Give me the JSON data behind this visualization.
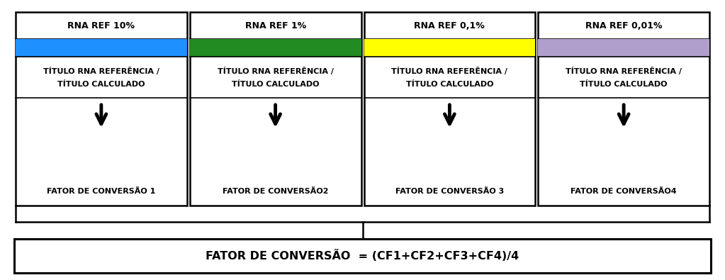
{
  "bg_color": "#ffffff",
  "columns": [
    {
      "label": "RNA REF 10%",
      "color": "#1e90ff"
    },
    {
      "label": "RNA REF 1%",
      "color": "#228B22"
    },
    {
      "label": "RNA REF 0,1%",
      "color": "#ffff00"
    },
    {
      "label": "RNA REF 0,01%",
      "color": "#b09fcc"
    }
  ],
  "ratio_line1": "TÍTULO RNA REFERÊNCIA /",
  "ratio_line2": "TÍTULO CALCULADO",
  "conversion_labels": [
    "FATOR DE CONVERSÃO 1",
    "FATOR DE CONVERSÃO2",
    "FATOR DE CONVERSÃO 3",
    "FATOR DE CONVERSÃO4"
  ],
  "bottom_formula": "FATOR DE CONVERSÃO  = (CF1+CF2+CF3+CF4)/4",
  "outer_box_color": "#000000",
  "text_color": "#000000",
  "arrow_color": "#000000",
  "fig_width": 10.23,
  "fig_height": 3.95,
  "dpi": 100
}
